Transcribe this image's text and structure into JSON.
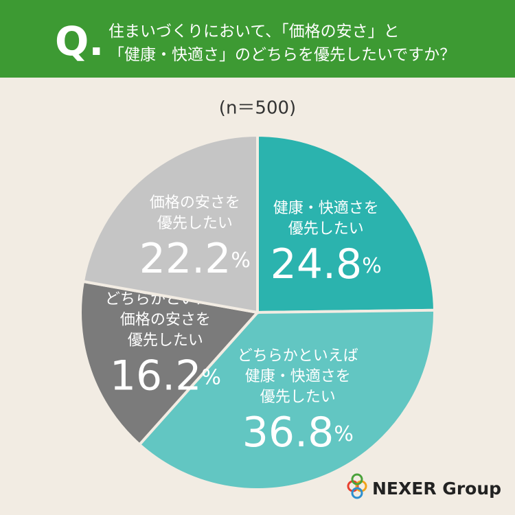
{
  "chart_data": {
    "type": "pie",
    "question_mark": "Q.",
    "title": "住まいづくりにおいて、「価格の安さ」と\n「健康・快適さ」のどちらを優先したいですか？",
    "subtitle": "(n＝500)",
    "categories": [
      "健康・快適さを\n優先したい",
      "どちらかといえば\n健康・快適さを\n優先したい",
      "どちらかといえば\n価格の安さを\n優先したい",
      "価格の安さを\n優先したい"
    ],
    "values": [
      24.8,
      36.8,
      16.2,
      22.2
    ],
    "value_labels": [
      "24.8%",
      "36.8%",
      "16.2%",
      "22.2%"
    ],
    "colors": [
      "#2bb3ae",
      "#62c6c2",
      "#7b7b7b",
      "#c5c5c5"
    ],
    "brand": "NEXER Group"
  }
}
